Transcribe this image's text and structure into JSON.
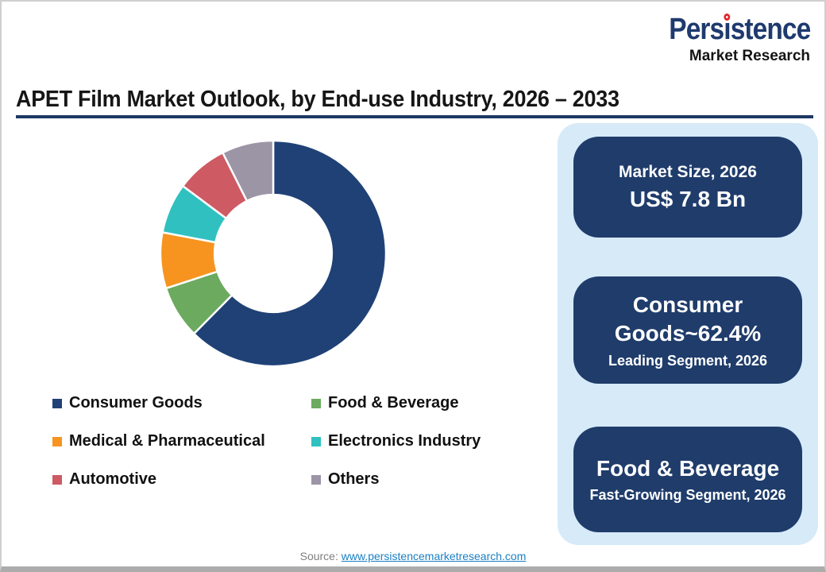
{
  "brand": {
    "name_pre": "Pers",
    "name_i": "ı",
    "name_rest": "stence",
    "tagline": "Market Research",
    "navy": "#1e3a6e",
    "dot_red": "#e4252c"
  },
  "header": {
    "title": "APET Film Market Outlook, by End-use Industry, 2026 – 2033"
  },
  "chart_data": {
    "type": "pie",
    "subtype": "donut",
    "title": "APET Film Market Outlook, by End-use Industry, 2026 – 2033",
    "unit": "%",
    "start_angle_deg": 0,
    "direction": "clockwise",
    "hole_ratio": 0.52,
    "legend_position": "below-chart-left, 2 columns",
    "series": [
      {
        "name": "Consumer Goods",
        "value": 62.4,
        "color": "#1f4176"
      },
      {
        "name": "Food & Beverage",
        "value": 7.6,
        "color": "#6baa5f"
      },
      {
        "name": "Medical & Pharmaceutical",
        "value": 8.0,
        "color": "#f6941f"
      },
      {
        "name": "Electronics Industry",
        "value": 7.2,
        "color": "#30c0c0"
      },
      {
        "name": "Automotive",
        "value": 7.4,
        "color": "#ce5a64"
      },
      {
        "name": "Others",
        "value": 7.4,
        "color": "#9b95a6"
      }
    ]
  },
  "panel": {
    "bg": "#d7eaf8",
    "card_bg": "#1f3c6b",
    "cards": [
      {
        "label": "Market Size, 2026",
        "value": "US$ 7.8 Bn"
      },
      {
        "headline": "Consumer Goods~62.4%",
        "subline": "Leading Segment, 2026"
      },
      {
        "headline": "Food & Beverage",
        "subline": "Fast-Growing Segment, 2026"
      }
    ]
  },
  "source": {
    "prefix": "Source:",
    "link_text": "www.persistencemarketresearch.com"
  }
}
